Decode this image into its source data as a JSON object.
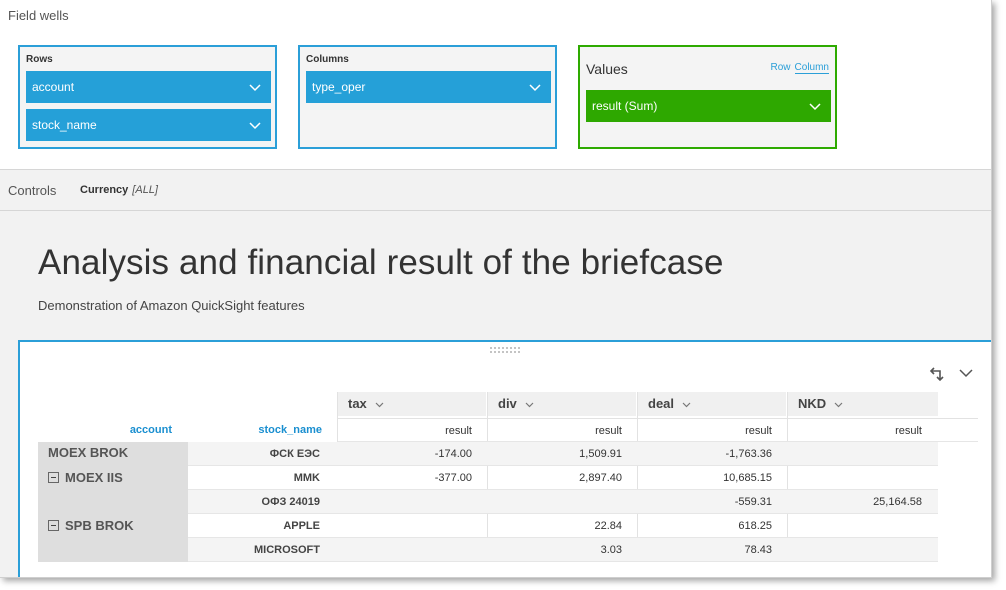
{
  "field_wells": {
    "title": "Field wells",
    "rows": {
      "label": "Rows",
      "items": [
        "account",
        "stock_name"
      ]
    },
    "columns": {
      "label": "Columns",
      "items": [
        "type_oper"
      ]
    },
    "values": {
      "label": "Values",
      "row_link": "Row",
      "column_link": "Column",
      "items": [
        "result (Sum)"
      ]
    }
  },
  "controls": {
    "title": "Controls",
    "item_label": "Currency",
    "item_value": "[ALL]"
  },
  "sheet": {
    "title": "Analysis and financial result of the briefcase",
    "subtitle": "Demonstration of Amazon QuickSight features"
  },
  "pivot": {
    "row_headers": [
      "account",
      "stock_name"
    ],
    "column_groups": [
      "tax",
      "div",
      "deal",
      "NKD"
    ],
    "measure_label": "result",
    "rows": [
      {
        "account": "MOEX BROK",
        "stock": "ФСК ЕЭС",
        "values": [
          "-174.00",
          "1,509.91",
          "-1,763.36",
          ""
        ]
      },
      {
        "account": "MOEX IIS",
        "stock": "MMK",
        "values": [
          "-377.00",
          "2,897.40",
          "10,685.15",
          ""
        ]
      },
      {
        "account": "",
        "stock": "ОФЗ 24019",
        "values": [
          "",
          "",
          "-559.31",
          "25,164.58"
        ]
      },
      {
        "account": "SPB BROK",
        "stock": "APPLE",
        "values": [
          "",
          "22.84",
          "618.25",
          ""
        ]
      },
      {
        "account": "",
        "stock": "MICROSOFT",
        "values": [
          "",
          "3.03",
          "78.43",
          ""
        ]
      }
    ]
  },
  "colors": {
    "accent_blue": "#25a0d8",
    "accent_green": "#2ea800"
  }
}
